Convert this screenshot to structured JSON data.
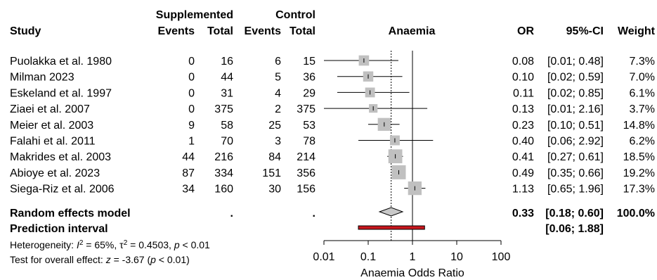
{
  "headers": {
    "supplemented": "Supplemented",
    "control": "Control",
    "study": "Study",
    "events": "Events",
    "total": "Total",
    "plot_title": "Anaemia",
    "or": "OR",
    "ci": "95%-CI",
    "weight": "Weight"
  },
  "chart_data": {
    "type": "forest",
    "x_scale": "log",
    "xlim": [
      0.01,
      100
    ],
    "xlabel": "Anaemia Odds Ratio",
    "ticks": [
      {
        "value": 0.01,
        "label": "0.01"
      },
      {
        "value": 0.1,
        "label": "0.1"
      },
      {
        "value": 1,
        "label": "1"
      },
      {
        "value": 10,
        "label": "10"
      },
      {
        "value": 100,
        "label": "100"
      }
    ],
    "null_line": 1,
    "pooled_line": 0.33,
    "studies": [
      {
        "study": "Puolakka et al. 1980",
        "events_s": "0",
        "total_s": "16",
        "events_c": "6",
        "total_c": "15",
        "or": 0.08,
        "lower": 0.01,
        "upper": 0.48,
        "or_text": "0.08",
        "ci_text": "[0.01; 0.48]",
        "weight": 7.3,
        "weight_text": "7.3%"
      },
      {
        "study": "Milman 2023",
        "events_s": "0",
        "total_s": "44",
        "events_c": "5",
        "total_c": "36",
        "or": 0.1,
        "lower": 0.02,
        "upper": 0.59,
        "or_text": "0.10",
        "ci_text": "[0.02; 0.59]",
        "weight": 7.0,
        "weight_text": "7.0%"
      },
      {
        "study": "Eskeland et al. 1997",
        "events_s": "0",
        "total_s": "31",
        "events_c": "4",
        "total_c": "29",
        "or": 0.11,
        "lower": 0.02,
        "upper": 0.85,
        "or_text": "0.11",
        "ci_text": "[0.02; 0.85]",
        "weight": 6.1,
        "weight_text": "6.1%"
      },
      {
        "study": "Ziaei et al. 2007",
        "events_s": "0",
        "total_s": "375",
        "events_c": "2",
        "total_c": "375",
        "or": 0.13,
        "lower": 0.01,
        "upper": 2.16,
        "or_text": "0.13",
        "ci_text": "[0.01; 2.16]",
        "weight": 3.7,
        "weight_text": "3.7%"
      },
      {
        "study": "Meier et al. 2003",
        "events_s": "9",
        "total_s": "58",
        "events_c": "25",
        "total_c": "53",
        "or": 0.23,
        "lower": 0.1,
        "upper": 0.51,
        "or_text": "0.23",
        "ci_text": "[0.10; 0.51]",
        "weight": 14.8,
        "weight_text": "14.8%"
      },
      {
        "study": "Falahi et al. 2011",
        "events_s": "1",
        "total_s": "70",
        "events_c": "3",
        "total_c": "78",
        "or": 0.4,
        "lower": 0.06,
        "upper": 2.92,
        "or_text": "0.40",
        "ci_text": "[0.06; 2.92]",
        "weight": 6.2,
        "weight_text": "6.2%"
      },
      {
        "study": "Makrides et al. 2003",
        "events_s": "44",
        "total_s": "216",
        "events_c": "84",
        "total_c": "214",
        "or": 0.41,
        "lower": 0.27,
        "upper": 0.61,
        "or_text": "0.41",
        "ci_text": "[0.27; 0.61]",
        "weight": 18.5,
        "weight_text": "18.5%"
      },
      {
        "study": "Abioye et al. 2023",
        "events_s": "87",
        "total_s": "334",
        "events_c": "151",
        "total_c": "356",
        "or": 0.49,
        "lower": 0.35,
        "upper": 0.66,
        "or_text": "0.49",
        "ci_text": "[0.35; 0.66]",
        "weight": 19.2,
        "weight_text": "19.2%"
      },
      {
        "study": "Siega-Riz et al. 2006",
        "events_s": "34",
        "total_s": "160",
        "events_c": "30",
        "total_c": "156",
        "or": 1.13,
        "lower": 0.65,
        "upper": 1.96,
        "or_text": "1.13",
        "ci_text": "[0.65; 1.96]",
        "weight": 17.3,
        "weight_text": "17.3%"
      }
    ],
    "random_effects": {
      "label": "Random effects model",
      "events_s": ".",
      "events_c": ".",
      "or": 0.33,
      "lower": 0.18,
      "upper": 0.6,
      "or_text": "0.33",
      "ci_text": "[0.18; 0.60]",
      "weight_text": "100.0%"
    },
    "prediction_interval": {
      "label": "Prediction interval",
      "lower": 0.06,
      "upper": 1.88,
      "ci_text": "[0.06; 1.88]"
    },
    "heterogeneity": {
      "prefix": "Heterogeneity: ",
      "i2_symbol": "I",
      "i2_value": " = 65%, ",
      "tau_symbol": "τ",
      "tau_value": " = 0.4503, ",
      "p_symbol": "p",
      "p_value": " < 0.01"
    },
    "overall_effect": {
      "prefix": "Test for overall effect: ",
      "z_symbol": "z",
      "z_value": " = -3.67 (",
      "p_symbol": "p",
      "p_value": " < 0.01)"
    },
    "colors": {
      "square": "#c0c0c0",
      "diamond": "#c8c8c8",
      "prediction_fill": "#c8161d",
      "line": "#000000"
    }
  }
}
